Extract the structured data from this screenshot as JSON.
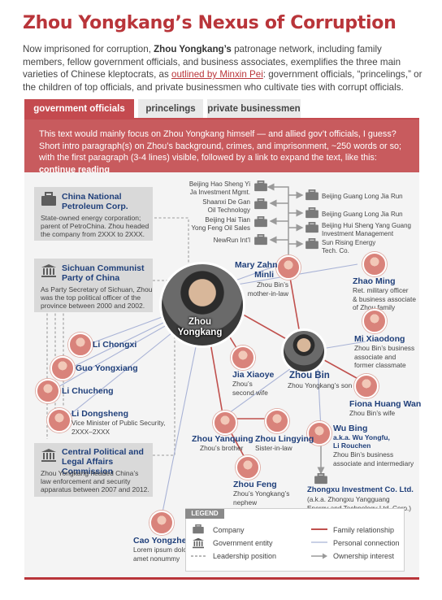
{
  "header": {
    "title": "Zhou Yongkang’s Nexus of Corruption",
    "intro_1": "Now imprisoned for corruption, ",
    "intro_bold": "Zhou Yongkang’s",
    "intro_2": " patronage network, including family members, fellow government officials, and business associates, exemplifies the three main varieties of Chinese kleptocrats, as ",
    "intro_link": "outlined by Minxin Pei",
    "intro_3": ": government officials, “princelings,” or the children of top officials, and private businessmen who cultivate ties with corrupt officials."
  },
  "tabs": [
    {
      "label": "government officials",
      "active": true
    },
    {
      "label": "princelings",
      "active": false
    },
    {
      "label": "private businessmen",
      "active": false
    }
  ],
  "banner": {
    "text": "This text would mainly focus on Zhou Yongkang himself — and allied gov’t officials, I guess? Short intro paragraph(s) on Zhou’s background, crimes, and imprisonment, ~250 words or so; with the first paragraph (3-4 lines) visible, followed by a link to expand the text, like this: ",
    "link": "continue reading"
  },
  "cards": {
    "cnpc": {
      "title_1": "China National",
      "title_2": "Petroleum Corp.",
      "desc_1": "State-owned energy corporation;",
      "desc_2": "parent of PetroChina. Zhou headed",
      "desc_3": "the company from 2XXX to 2XXX."
    },
    "sichuan": {
      "title_1": "Sichuan Communist",
      "title_2": "Party of China",
      "desc_1": "As Party Secretary of Sichuan, Zhou",
      "desc_2": "was the top political officer of the",
      "desc_3": "province between 2000 and 2002."
    },
    "cplac": {
      "title_1": "Central Political and",
      "title_2": "Legal Affairs Commission",
      "desc_1": "Zhou Yongkang headed China’s",
      "desc_2": "law enforcement and security",
      "desc_3": "apparatus between 2007 and 2012."
    }
  },
  "companies_left": [
    {
      "l1": "Beijing Hao Sheng Yi",
      "l2": "Ja Investment Mgmt."
    },
    {
      "l1": "Shaanxi De Gan",
      "l2": "Oil Technology"
    },
    {
      "l1": "Beijing Hai Tian",
      "l2": "Yong Feng Oil Sales"
    },
    {
      "l1": "NewRun Int’l",
      "l2": ""
    }
  ],
  "companies_right": [
    {
      "l1": "Beijing Guang Long Jia Run",
      "l2": ""
    },
    {
      "l1": "Beijing Guang Long Jia Run",
      "l2": ""
    },
    {
      "l1": "Beijing Hui Sheng Yang Guang",
      "l2": "Investment Management"
    },
    {
      "l1": "Sun Rising Energy",
      "l2": "Tech. Co."
    }
  ],
  "people": {
    "zhou_yongkang": {
      "l1": "Zhou",
      "l2": "Yongkang"
    },
    "zhou_bin": {
      "name": "Zhou Bin",
      "desc": "Zhou Yongkang’s son"
    },
    "mary_zahn": {
      "name_1": "Mary Zahn",
      "name_2": "Minli",
      "desc_1": "Zhou Bin’s",
      "desc_2": "mother-in-law"
    },
    "zhao_ming": {
      "name": "Zhao Ming",
      "desc_1": "Ret. military officer",
      "desc_2": "& business associate",
      "desc_3": "of Zhou family"
    },
    "mi_xiaodong": {
      "name": "Mi Xiaodong",
      "desc_1": "Zhou Bin’s business",
      "desc_2": "associate and",
      "desc_3": "former classmate"
    },
    "li_chongxi": {
      "name": "Li Chongxi"
    },
    "guo_yongxiang": {
      "name": "Guo Yongxiang"
    },
    "li_chucheng": {
      "name": "Li Chucheng"
    },
    "li_dongsheng": {
      "name": "Li Dongsheng",
      "desc_1": "Vice Minister of Public Security,",
      "desc_2": "2XXX–2XXX"
    },
    "jia_xiaoye": {
      "name": "Jia Xiaoye",
      "desc_1": "Zhou’s",
      "desc_2": "second wife"
    },
    "fiona_huang": {
      "name": "Fiona Huang Wan",
      "desc": "Zhou Bin’s wife"
    },
    "wu_bing": {
      "name": "Wu Bing",
      "aka_1": "a.k.a. Wu Yongfu,",
      "aka_2": "Li Rouchen",
      "desc_1": "Zhou Bin’s business",
      "desc_2": "associate and intermediary"
    },
    "zhou_yanquing": {
      "name": "Zhou Yanquing",
      "desc": "Zhou’s brother"
    },
    "zhou_lingying": {
      "name": "Zhou Lingying",
      "desc": "Sister-in-law"
    },
    "zhou_feng": {
      "name": "Zhou Feng",
      "desc_1": "Zhou’s Yongkang’s",
      "desc_2": "nephew"
    },
    "cao_yongzheng": {
      "name": "Cao Yongzheng",
      "desc_1": "Lorem ipsum dolor sit",
      "desc_2": "amet nonummy"
    }
  },
  "zhongxu": {
    "name": "Zhongxu Investment Co. Ltd.",
    "desc_1": "(a.k.a. Zhongxu Yangguang",
    "desc_2": "Energy and Technology Ltd. Corp.)"
  },
  "legend": {
    "tag": "LEGEND",
    "company": "Company",
    "government": "Government entity",
    "leadership": "Leadership position",
    "family": "Family relationship",
    "personal": "Personal connection",
    "ownership": "Ownership interest"
  },
  "colors": {
    "accent": "#b9353a",
    "banner": "#c85b5e",
    "name_blue": "#1f3f7a",
    "family_line": "#c0504d",
    "personal_line": "#a9b3d6"
  }
}
